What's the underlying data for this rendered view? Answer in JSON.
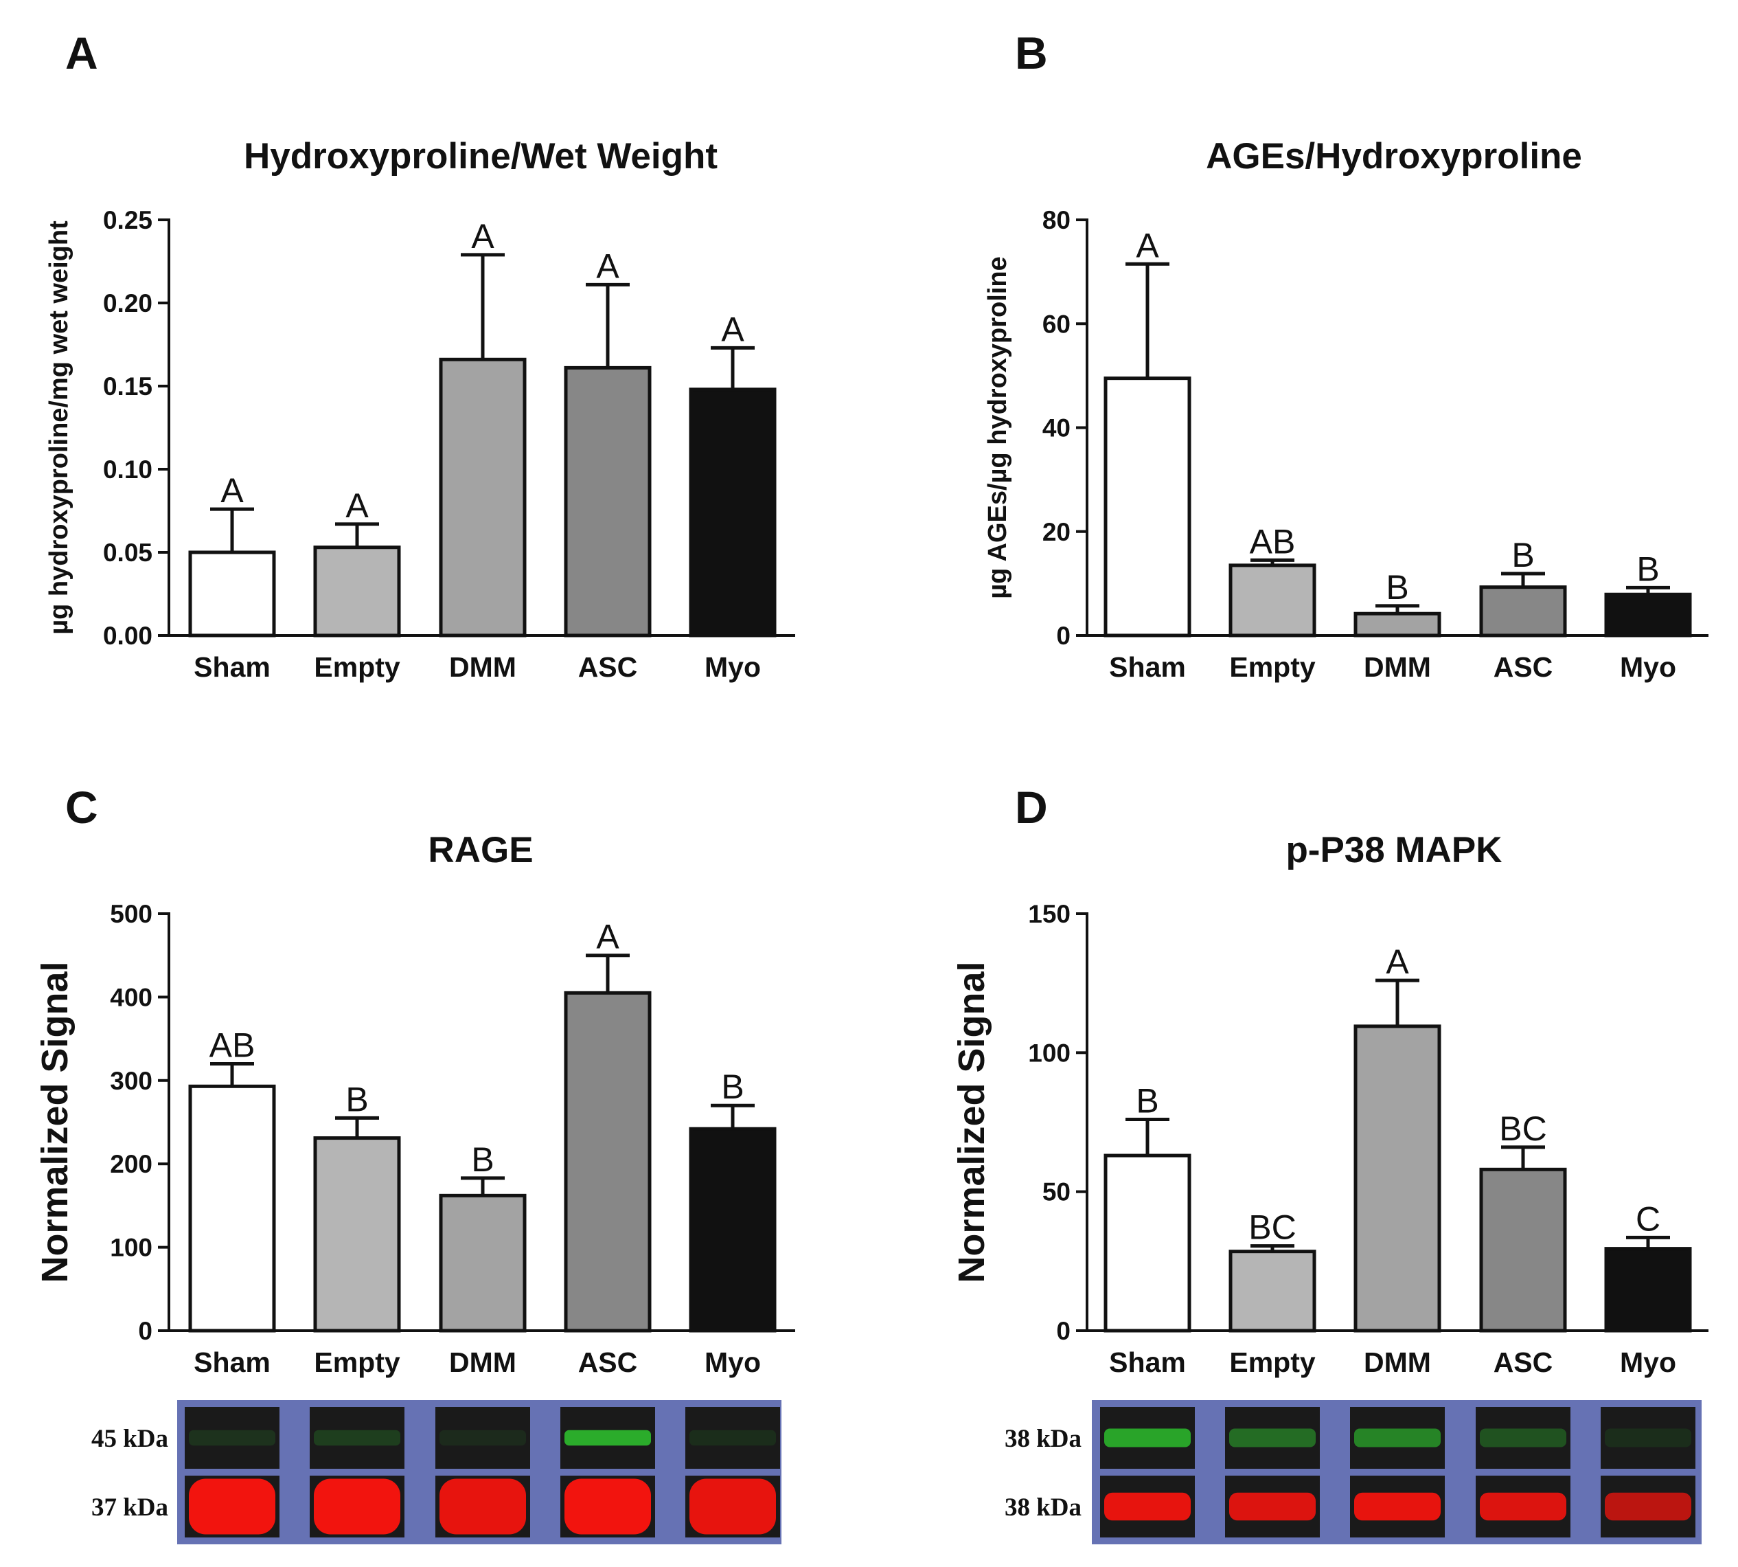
{
  "chart_data": [
    {
      "type": "bar",
      "panel": "A",
      "title": "Hydroxyproline/Wet Weight",
      "xlabel": "",
      "ylabel": "µg hydroxyproline/mg wet weight",
      "categories": [
        "Sham",
        "Empty",
        "DMM",
        "ASC",
        "Myo"
      ],
      "values": [
        0.05,
        0.053,
        0.166,
        0.161,
        0.148
      ],
      "errors": [
        0.026,
        0.014,
        0.063,
        0.05,
        0.025
      ],
      "significance": [
        "A",
        "A",
        "A",
        "A",
        "A"
      ],
      "ylim": [
        0,
        0.25
      ],
      "yticks": [
        0,
        0.05,
        0.1,
        0.15,
        0.2,
        0.25
      ],
      "ytick_labels": [
        "0.00",
        "0.05",
        "0.10",
        "0.15",
        "0.20",
        "0.25"
      ],
      "bar_colors": [
        "#ffffff",
        "#b5b5b5",
        "#a3a3a3",
        "#878787",
        "#111111"
      ]
    },
    {
      "type": "bar",
      "panel": "B",
      "title": "AGEs/Hydroxyproline",
      "xlabel": "",
      "ylabel": "µg AGEs/µg hydroxyproline",
      "categories": [
        "Sham",
        "Empty",
        "DMM",
        "ASC",
        "Myo"
      ],
      "values": [
        49.5,
        13.5,
        4.2,
        9.3,
        7.9
      ],
      "errors": [
        22,
        1,
        1.5,
        2.6,
        1.3
      ],
      "significance": [
        "A",
        "AB",
        "B",
        "B",
        "B"
      ],
      "ylim": [
        0,
        80
      ],
      "yticks": [
        0,
        20,
        40,
        60,
        80
      ],
      "ytick_labels": [
        "0",
        "20",
        "40",
        "60",
        "80"
      ],
      "bar_colors": [
        "#ffffff",
        "#b5b5b5",
        "#a3a3a3",
        "#878787",
        "#111111"
      ]
    },
    {
      "type": "bar",
      "panel": "C",
      "title": "RAGE",
      "xlabel": "",
      "ylabel": "Normalized Signal",
      "categories": [
        "Sham",
        "Empty",
        "DMM",
        "ASC",
        "Myo"
      ],
      "values": [
        293,
        231,
        162,
        405,
        242
      ],
      "errors": [
        27,
        24,
        21,
        45,
        28
      ],
      "significance": [
        "AB",
        "B",
        "B",
        "A",
        "B"
      ],
      "ylim": [
        0,
        500
      ],
      "yticks": [
        0,
        100,
        200,
        300,
        400,
        500
      ],
      "ytick_labels": [
        "0",
        "100",
        "200",
        "300",
        "400",
        "500"
      ],
      "bar_colors": [
        "#ffffff",
        "#b5b5b5",
        "#a3a3a3",
        "#878787",
        "#111111"
      ]
    },
    {
      "type": "bar",
      "panel": "D",
      "title": "p-P38 MAPK",
      "xlabel": "",
      "ylabel": "Normalized Signal",
      "categories": [
        "Sham",
        "Empty",
        "DMM",
        "ASC",
        "Myo"
      ],
      "values": [
        63,
        28.5,
        109.5,
        58,
        29.5
      ],
      "errors": [
        13,
        2,
        16.5,
        8,
        4
      ],
      "significance": [
        "B",
        "BC",
        "A",
        "BC",
        "C"
      ],
      "ylim": [
        0,
        150
      ],
      "yticks": [
        0,
        50,
        100,
        150
      ],
      "ytick_labels": [
        "0",
        "50",
        "100",
        "150"
      ],
      "bar_colors": [
        "#ffffff",
        "#b5b5b5",
        "#a3a3a3",
        "#878787",
        "#111111"
      ]
    }
  ],
  "blots": [
    {
      "panel": "C",
      "rows": [
        {
          "label": "45 kDa",
          "color": "#2dbd2d",
          "intensities": [
            0.15,
            0.22,
            0.1,
            0.9,
            0.12
          ],
          "thickness": 0.25
        },
        {
          "label": "37 kDa",
          "color": "#f2140e",
          "intensities": [
            1,
            1,
            0.95,
            1,
            0.95
          ],
          "thickness": 0.9
        }
      ]
    },
    {
      "panel": "D",
      "rows": [
        {
          "label": "38 kDa",
          "color": "#2dbd2d",
          "intensities": [
            0.85,
            0.5,
            0.65,
            0.35,
            0.12
          ],
          "thickness": 0.3
        },
        {
          "label": "38 kDa",
          "color": "#f2140e",
          "intensities": [
            0.95,
            0.9,
            0.95,
            0.9,
            0.75
          ],
          "thickness": 0.45
        }
      ]
    }
  ],
  "colors": {
    "blot_frame": "#6672b4",
    "blot_background": "#1a1a1a"
  }
}
